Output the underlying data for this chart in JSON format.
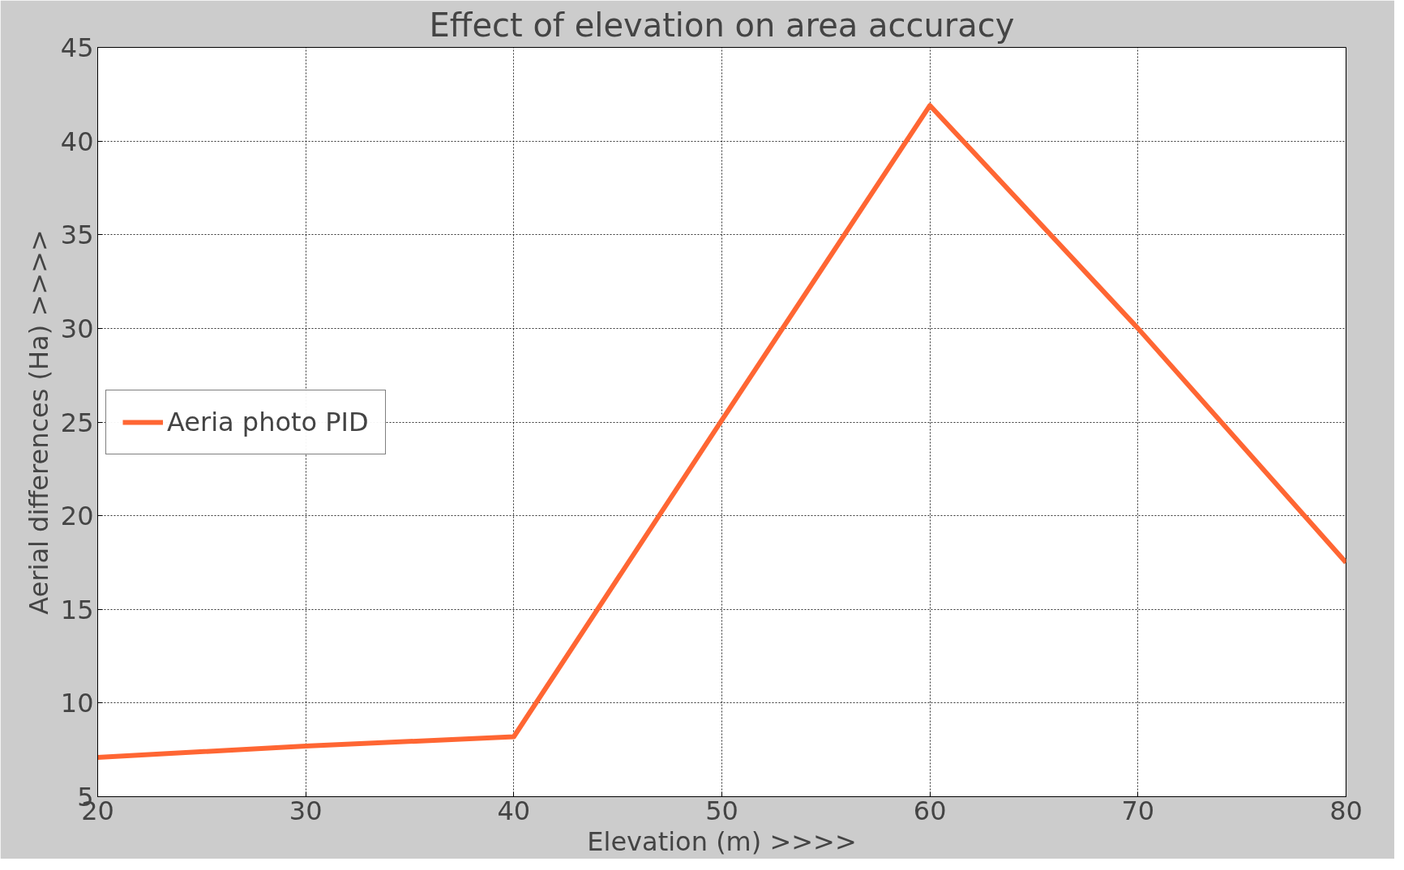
{
  "chart_data": {
    "type": "line",
    "title": "Effect of elevation on area accuracy",
    "xlabel": "Elevation (m) >>>>",
    "ylabel": "Aerial differences (Ha) >>>>",
    "x": [
      20,
      30,
      40,
      50,
      60,
      70,
      80
    ],
    "series": [
      {
        "name": "Aeria photo PID",
        "color": "#ff6633",
        "values": [
          7.1,
          7.7,
          8.2,
          25.1,
          41.9,
          30,
          17.5
        ]
      }
    ],
    "xlim": [
      20,
      80
    ],
    "ylim": [
      5,
      45
    ],
    "xticks": [
      20,
      30,
      40,
      50,
      60,
      70,
      80
    ],
    "yticks": [
      5,
      10,
      15,
      20,
      25,
      30,
      35,
      40,
      45
    ],
    "grid": true,
    "legend": "left",
    "marker": "none",
    "line_style": "solid"
  }
}
